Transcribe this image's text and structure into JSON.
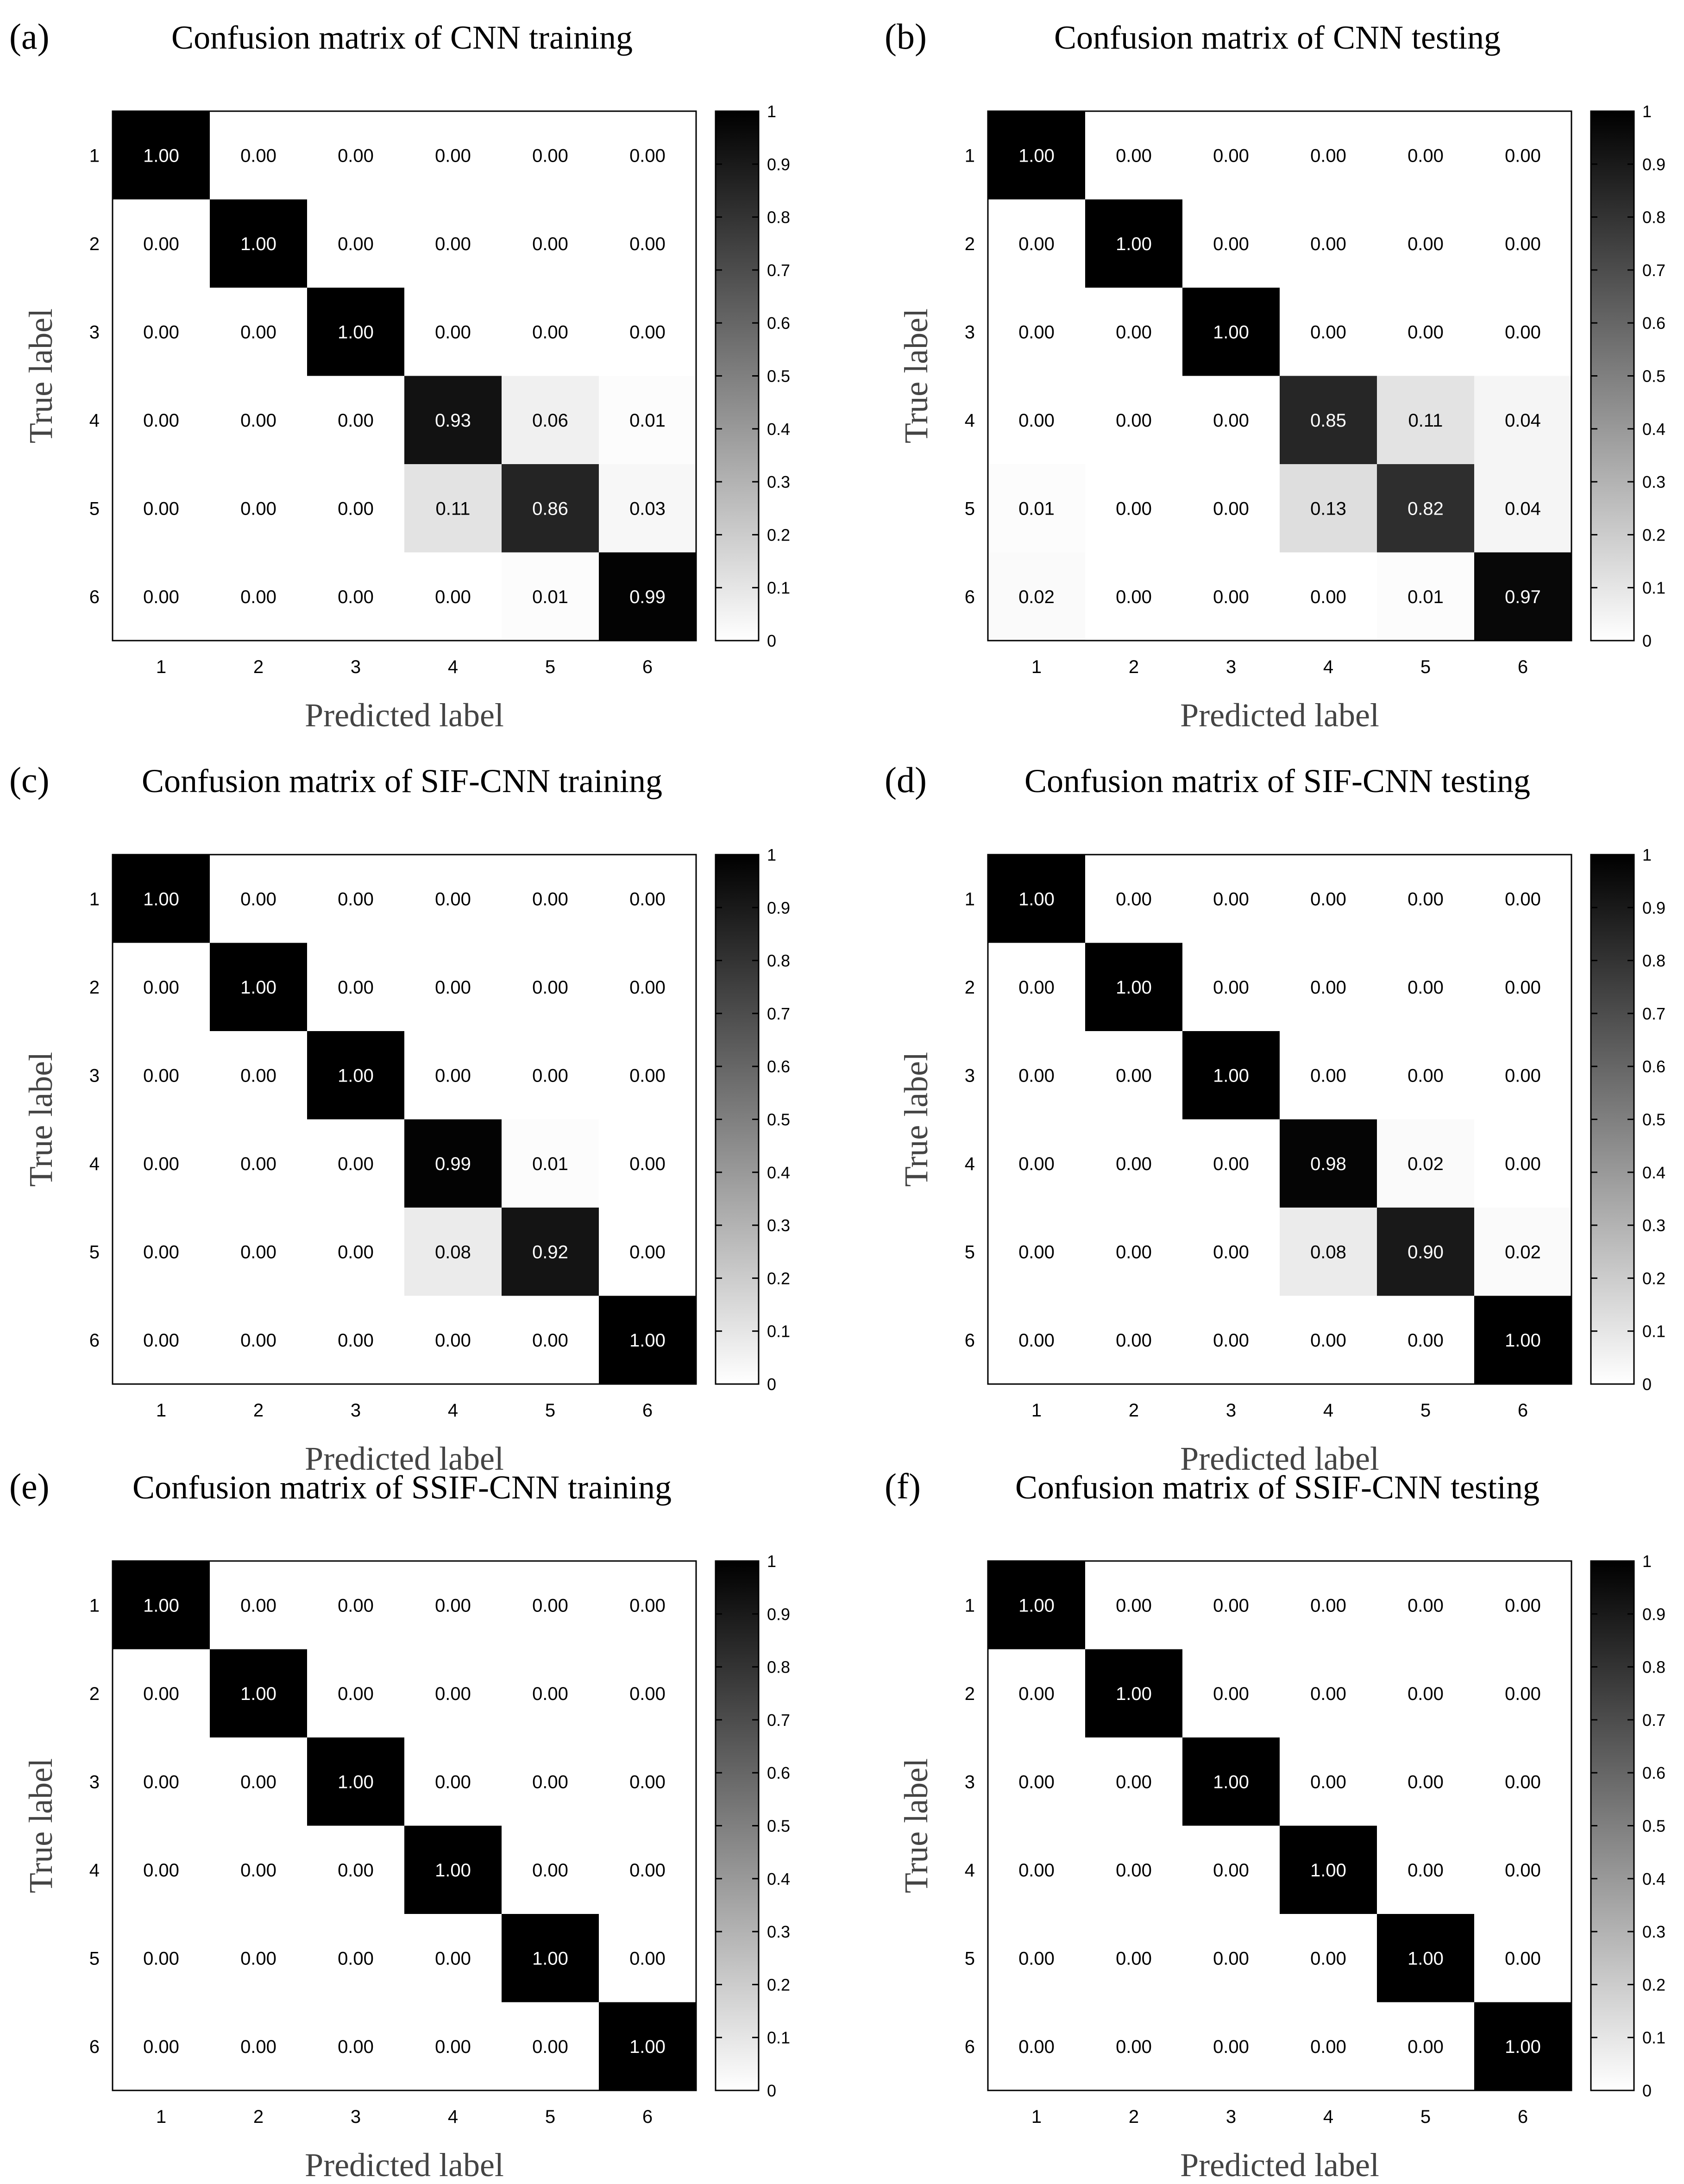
{
  "figure": {
    "background": "#ffffff"
  },
  "chart_data": [
    {
      "type": "heatmap",
      "panel_label": "(a)",
      "title": "Confusion matrix of CNN training",
      "xlabel": "Predicted label",
      "ylabel": "True label",
      "x_ticks": [
        "1",
        "2",
        "3",
        "4",
        "5",
        "6"
      ],
      "y_ticks": [
        "1",
        "2",
        "3",
        "4",
        "5",
        "6"
      ],
      "colorbar_ticks": [
        "0",
        "0.1",
        "0.2",
        "0.3",
        "0.4",
        "0.5",
        "0.6",
        "0.7",
        "0.8",
        "0.9",
        "1"
      ],
      "colorbar_range": [
        0,
        1
      ],
      "colormap": "white-to-black",
      "matrix": [
        [
          "1.00",
          "0.00",
          "0.00",
          "0.00",
          "0.00",
          "0.00"
        ],
        [
          "0.00",
          "1.00",
          "0.00",
          "0.00",
          "0.00",
          "0.00"
        ],
        [
          "0.00",
          "0.00",
          "1.00",
          "0.00",
          "0.00",
          "0.00"
        ],
        [
          "0.00",
          "0.00",
          "0.00",
          "0.93",
          "0.06",
          "0.01"
        ],
        [
          "0.00",
          "0.00",
          "0.00",
          "0.11",
          "0.86",
          "0.03"
        ],
        [
          "0.00",
          "0.00",
          "0.00",
          "0.00",
          "0.01",
          "0.99"
        ]
      ]
    },
    {
      "type": "heatmap",
      "panel_label": "(b)",
      "title": "Confusion matrix of CNN testing",
      "xlabel": "Predicted label",
      "ylabel": "True label",
      "x_ticks": [
        "1",
        "2",
        "3",
        "4",
        "5",
        "6"
      ],
      "y_ticks": [
        "1",
        "2",
        "3",
        "4",
        "5",
        "6"
      ],
      "colorbar_ticks": [
        "0",
        "0.1",
        "0.2",
        "0.3",
        "0.4",
        "0.5",
        "0.6",
        "0.7",
        "0.8",
        "0.9",
        "1"
      ],
      "colorbar_range": [
        0,
        1
      ],
      "colormap": "white-to-black",
      "matrix": [
        [
          "1.00",
          "0.00",
          "0.00",
          "0.00",
          "0.00",
          "0.00"
        ],
        [
          "0.00",
          "1.00",
          "0.00",
          "0.00",
          "0.00",
          "0.00"
        ],
        [
          "0.00",
          "0.00",
          "1.00",
          "0.00",
          "0.00",
          "0.00"
        ],
        [
          "0.00",
          "0.00",
          "0.00",
          "0.85",
          "0.11",
          "0.04"
        ],
        [
          "0.01",
          "0.00",
          "0.00",
          "0.13",
          "0.82",
          "0.04"
        ],
        [
          "0.02",
          "0.00",
          "0.00",
          "0.00",
          "0.01",
          "0.97"
        ]
      ]
    },
    {
      "type": "heatmap",
      "panel_label": "(c)",
      "title": "Confusion matrix of SIF-CNN training",
      "xlabel": "Predicted label",
      "ylabel": "True label",
      "x_ticks": [
        "1",
        "2",
        "3",
        "4",
        "5",
        "6"
      ],
      "y_ticks": [
        "1",
        "2",
        "3",
        "4",
        "5",
        "6"
      ],
      "colorbar_ticks": [
        "0",
        "0.1",
        "0.2",
        "0.3",
        "0.4",
        "0.5",
        "0.6",
        "0.7",
        "0.8",
        "0.9",
        "1"
      ],
      "colorbar_range": [
        0,
        1
      ],
      "colormap": "white-to-black",
      "matrix": [
        [
          "1.00",
          "0.00",
          "0.00",
          "0.00",
          "0.00",
          "0.00"
        ],
        [
          "0.00",
          "1.00",
          "0.00",
          "0.00",
          "0.00",
          "0.00"
        ],
        [
          "0.00",
          "0.00",
          "1.00",
          "0.00",
          "0.00",
          "0.00"
        ],
        [
          "0.00",
          "0.00",
          "0.00",
          "0.99",
          "0.01",
          "0.00"
        ],
        [
          "0.00",
          "0.00",
          "0.00",
          "0.08",
          "0.92",
          "0.00"
        ],
        [
          "0.00",
          "0.00",
          "0.00",
          "0.00",
          "0.00",
          "1.00"
        ]
      ]
    },
    {
      "type": "heatmap",
      "panel_label": "(d)",
      "title": "Confusion matrix of SIF-CNN testing",
      "xlabel": "Predicted label",
      "ylabel": "True label",
      "x_ticks": [
        "1",
        "2",
        "3",
        "4",
        "5",
        "6"
      ],
      "y_ticks": [
        "1",
        "2",
        "3",
        "4",
        "5",
        "6"
      ],
      "colorbar_ticks": [
        "0",
        "0.1",
        "0.2",
        "0.3",
        "0.4",
        "0.5",
        "0.6",
        "0.7",
        "0.8",
        "0.9",
        "1"
      ],
      "colorbar_range": [
        0,
        1
      ],
      "colormap": "white-to-black",
      "matrix": [
        [
          "1.00",
          "0.00",
          "0.00",
          "0.00",
          "0.00",
          "0.00"
        ],
        [
          "0.00",
          "1.00",
          "0.00",
          "0.00",
          "0.00",
          "0.00"
        ],
        [
          "0.00",
          "0.00",
          "1.00",
          "0.00",
          "0.00",
          "0.00"
        ],
        [
          "0.00",
          "0.00",
          "0.00",
          "0.98",
          "0.02",
          "0.00"
        ],
        [
          "0.00",
          "0.00",
          "0.00",
          "0.08",
          "0.90",
          "0.02"
        ],
        [
          "0.00",
          "0.00",
          "0.00",
          "0.00",
          "0.00",
          "1.00"
        ]
      ]
    },
    {
      "type": "heatmap",
      "panel_label": "(e)",
      "title": "Confusion matrix of SSIF-CNN training",
      "xlabel": "Predicted label",
      "ylabel": "True label",
      "x_ticks": [
        "1",
        "2",
        "3",
        "4",
        "5",
        "6"
      ],
      "y_ticks": [
        "1",
        "2",
        "3",
        "4",
        "5",
        "6"
      ],
      "colorbar_ticks": [
        "0",
        "0.1",
        "0.2",
        "0.3",
        "0.4",
        "0.5",
        "0.6",
        "0.7",
        "0.8",
        "0.9",
        "1"
      ],
      "colorbar_range": [
        0,
        1
      ],
      "colormap": "white-to-black",
      "matrix": [
        [
          "1.00",
          "0.00",
          "0.00",
          "0.00",
          "0.00",
          "0.00"
        ],
        [
          "0.00",
          "1.00",
          "0.00",
          "0.00",
          "0.00",
          "0.00"
        ],
        [
          "0.00",
          "0.00",
          "1.00",
          "0.00",
          "0.00",
          "0.00"
        ],
        [
          "0.00",
          "0.00",
          "0.00",
          "1.00",
          "0.00",
          "0.00"
        ],
        [
          "0.00",
          "0.00",
          "0.00",
          "0.00",
          "1.00",
          "0.00"
        ],
        [
          "0.00",
          "0.00",
          "0.00",
          "0.00",
          "0.00",
          "1.00"
        ]
      ]
    },
    {
      "type": "heatmap",
      "panel_label": "(f)",
      "title": "Confusion matrix of SSIF-CNN testing",
      "xlabel": "Predicted label",
      "ylabel": "True label",
      "x_ticks": [
        "1",
        "2",
        "3",
        "4",
        "5",
        "6"
      ],
      "y_ticks": [
        "1",
        "2",
        "3",
        "4",
        "5",
        "6"
      ],
      "colorbar_ticks": [
        "0",
        "0.1",
        "0.2",
        "0.3",
        "0.4",
        "0.5",
        "0.6",
        "0.7",
        "0.8",
        "0.9",
        "1"
      ],
      "colorbar_range": [
        0,
        1
      ],
      "colormap": "white-to-black",
      "matrix": [
        [
          "1.00",
          "0.00",
          "0.00",
          "0.00",
          "0.00",
          "0.00"
        ],
        [
          "0.00",
          "1.00",
          "0.00",
          "0.00",
          "0.00",
          "0.00"
        ],
        [
          "0.00",
          "0.00",
          "1.00",
          "0.00",
          "0.00",
          "0.00"
        ],
        [
          "0.00",
          "0.00",
          "0.00",
          "1.00",
          "0.00",
          "0.00"
        ],
        [
          "0.00",
          "0.00",
          "0.00",
          "0.00",
          "1.00",
          "0.00"
        ],
        [
          "0.00",
          "0.00",
          "0.00",
          "0.00",
          "0.00",
          "1.00"
        ]
      ]
    }
  ]
}
